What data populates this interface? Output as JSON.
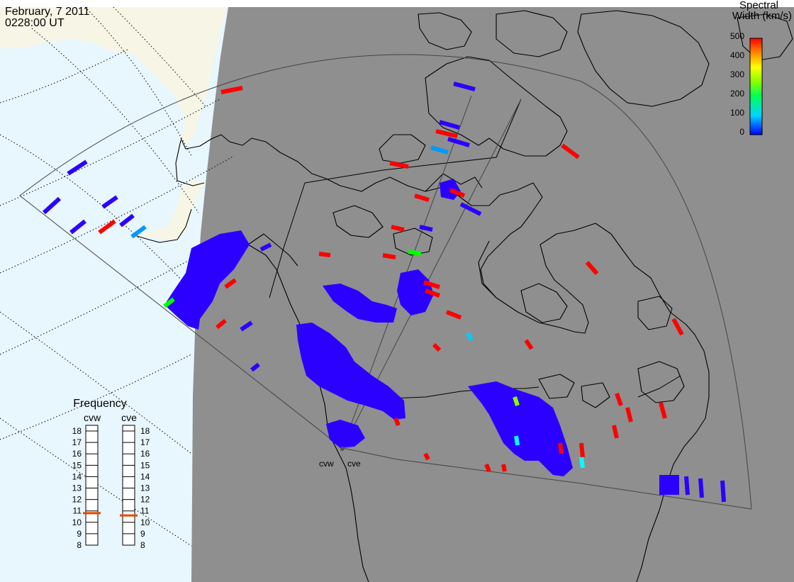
{
  "header": {
    "date": "February, 7 2011",
    "time": "0228:00 UT"
  },
  "colorbar": {
    "title_line1": "Spectral",
    "title_line2": "Width (km/s)",
    "min": 0,
    "max": 500,
    "ticks": [
      "500",
      "400",
      "300",
      "200",
      "100",
      "0"
    ]
  },
  "frequency_panel": {
    "title": "Frequency",
    "radars": [
      {
        "name": "cvw",
        "value_mhz": 10.8
      },
      {
        "name": "cve",
        "value_mhz": 10.6
      }
    ],
    "ticks": [
      "18",
      "17",
      "16",
      "15",
      "14",
      "13",
      "12",
      "11",
      "10",
      "9",
      "8"
    ]
  },
  "radar_sites": [
    {
      "code": "cvw"
    },
    {
      "code": "cve"
    }
  ],
  "colors": {
    "ocean_day": "#e8f6fd",
    "land_day": "#f7f6e6",
    "night": "#8f8f8f",
    "scatter_low": "#2b00ff",
    "scatter_high": "#ff0000",
    "freq_marker": "#e04a00"
  }
}
